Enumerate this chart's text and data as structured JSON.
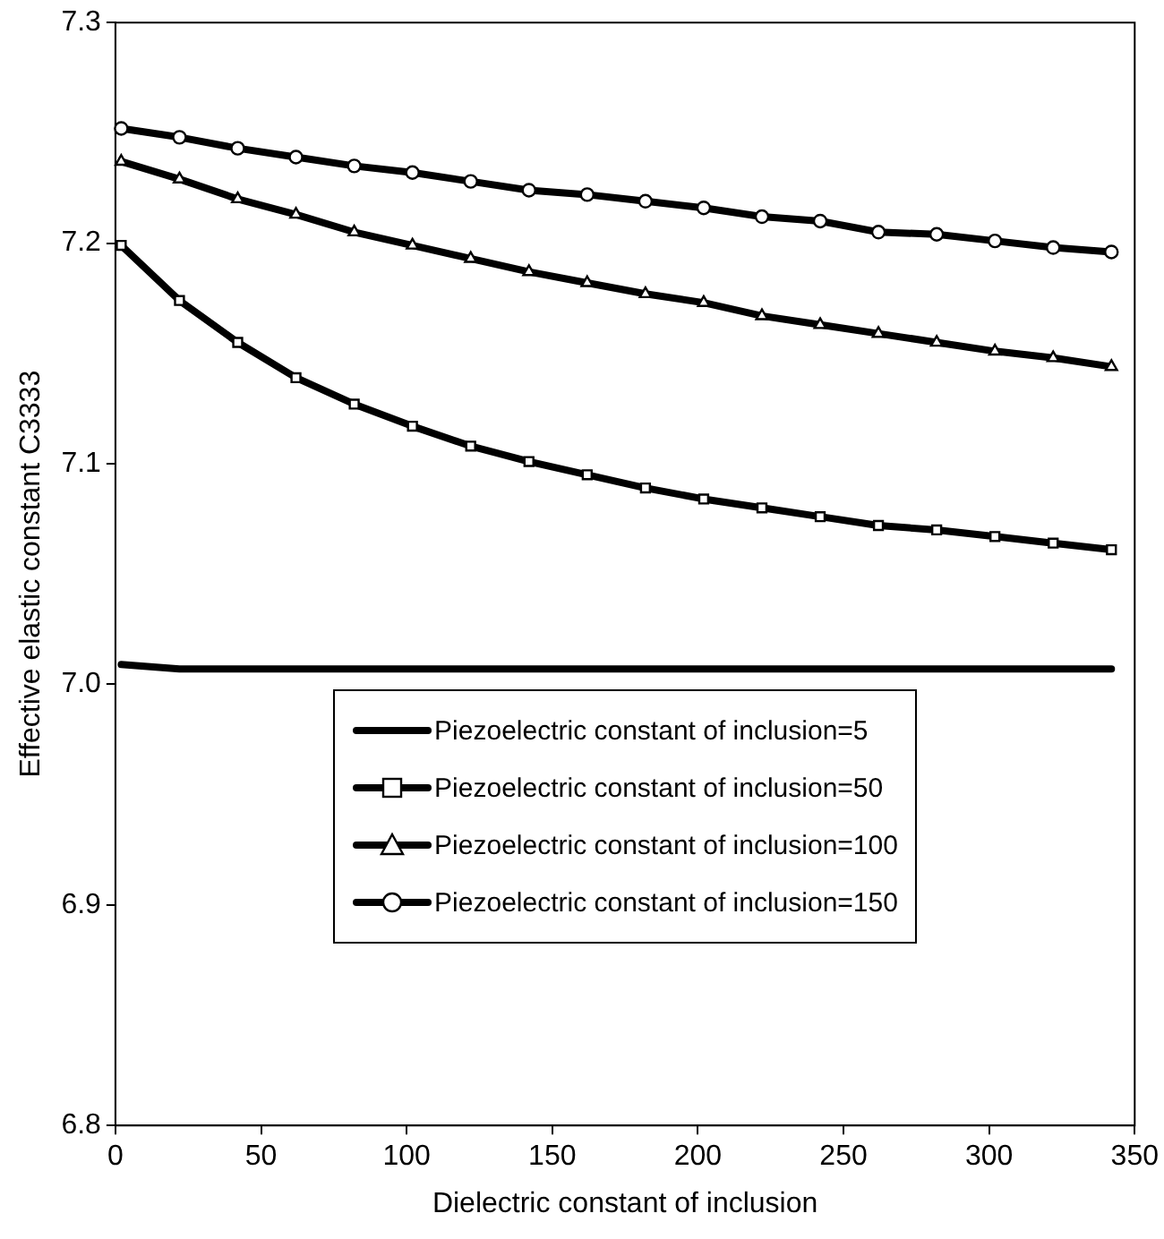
{
  "chart_data": {
    "type": "line",
    "xlabel": "Dielectric constant of inclusion",
    "ylabel": "Effective elastic constant C3333",
    "x": [
      2,
      22,
      42,
      62,
      82,
      102,
      122,
      142,
      162,
      182,
      202,
      222,
      242,
      262,
      282,
      302,
      322,
      342
    ],
    "xlim": [
      0,
      350
    ],
    "xticks": [
      0,
      50,
      100,
      150,
      200,
      250,
      300,
      350
    ],
    "ylim": [
      6.8,
      7.3
    ],
    "yticks": [
      6.8,
      6.9,
      {
        "value": 7,
        "label": "7.0"
      },
      7.1,
      7.2,
      7.3
    ],
    "grid": false,
    "legend": "center",
    "line_style": "solid",
    "series": [
      {
        "name": "Piezoelectric constant of inclusion=5",
        "color": "#000000",
        "marker": "none",
        "values": [
          7.009,
          7.007,
          7.007,
          7.007,
          7.007,
          7.007,
          7.007,
          7.007,
          7.007,
          7.007,
          7.007,
          7.007,
          7.007,
          7.007,
          7.007,
          7.007,
          7.007,
          7.007
        ]
      },
      {
        "name": "Piezoelectric constant of inclusion=50",
        "color": "#000000",
        "marker": "square",
        "values": [
          7.199,
          7.174,
          7.155,
          7.139,
          7.127,
          7.117,
          7.108,
          7.101,
          7.095,
          7.089,
          7.084,
          7.08,
          7.076,
          7.072,
          7.07,
          7.067,
          7.064,
          7.061
        ]
      },
      {
        "name": "Piezoelectric constant of inclusion=100",
        "color": "#000000",
        "marker": "triangle",
        "values": [
          7.237,
          7.229,
          7.22,
          7.213,
          7.205,
          7.199,
          7.193,
          7.187,
          7.182,
          7.177,
          7.173,
          7.167,
          7.163,
          7.159,
          7.155,
          7.151,
          7.148,
          7.144
        ]
      },
      {
        "name": "Piezoelectric constant of inclusion=150",
        "color": "#000000",
        "marker": "circle",
        "values": [
          7.252,
          7.248,
          7.243,
          7.239,
          7.235,
          7.232,
          7.228,
          7.224,
          7.222,
          7.219,
          7.216,
          7.212,
          7.21,
          7.205,
          7.204,
          7.201,
          7.198,
          7.196
        ]
      }
    ]
  }
}
